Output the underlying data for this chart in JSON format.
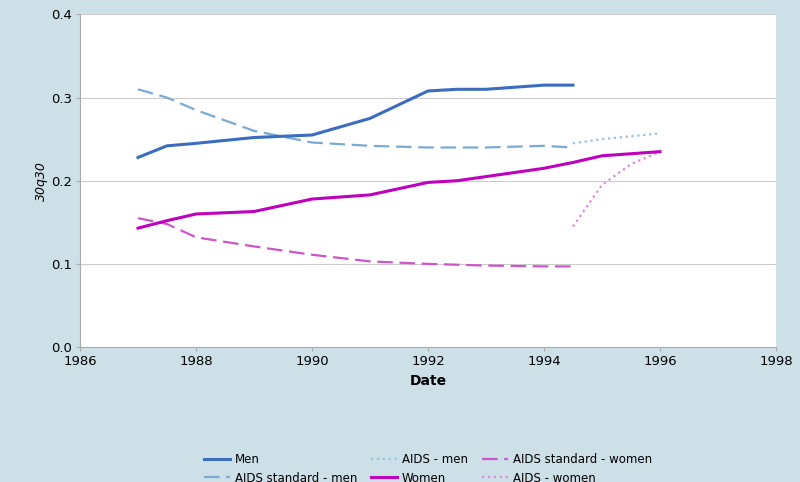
{
  "men_solid": {
    "x": [
      1987,
      1987.5,
      1988,
      1989,
      1990,
      1991,
      1992,
      1992.5,
      1993,
      1994,
      1994.5
    ],
    "y": [
      0.228,
      0.242,
      0.245,
      0.252,
      0.255,
      0.275,
      0.308,
      0.31,
      0.31,
      0.315,
      0.315
    ]
  },
  "aids_standard_men": {
    "x": [
      1987,
      1987.5,
      1988,
      1989,
      1990,
      1991,
      1992,
      1993,
      1994,
      1994.5
    ],
    "y": [
      0.31,
      0.3,
      0.285,
      0.26,
      0.246,
      0.242,
      0.24,
      0.24,
      0.242,
      0.24
    ]
  },
  "aids_men": {
    "x": [
      1994.5,
      1995,
      1996
    ],
    "y": [
      0.245,
      0.25,
      0.257
    ]
  },
  "women_solid": {
    "x": [
      1987,
      1987.5,
      1988,
      1989,
      1990,
      1991,
      1992,
      1992.5,
      1993,
      1994,
      1994.5,
      1995,
      1996
    ],
    "y": [
      0.143,
      0.152,
      0.16,
      0.163,
      0.178,
      0.183,
      0.198,
      0.2,
      0.205,
      0.215,
      0.222,
      0.23,
      0.235
    ]
  },
  "aids_standard_women": {
    "x": [
      1987,
      1987.5,
      1988,
      1989,
      1990,
      1991,
      1992,
      1993,
      1994,
      1994.5
    ],
    "y": [
      0.155,
      0.148,
      0.132,
      0.121,
      0.111,
      0.103,
      0.1,
      0.098,
      0.097,
      0.097
    ]
  },
  "aids_women": {
    "x": [
      1994.5,
      1995,
      1995.5,
      1996
    ],
    "y": [
      0.145,
      0.195,
      0.22,
      0.235
    ]
  },
  "color_blue": "#3a6dbf",
  "color_blue_dashed": "#7baad4",
  "color_blue_dotted": "#99c0e0",
  "color_magenta": "#bf00bf",
  "color_magenta_dashed": "#cc55cc",
  "color_magenta_dotted": "#dd88dd",
  "xlim": [
    1986,
    1998
  ],
  "ylim": [
    0.0,
    0.4
  ],
  "xticks": [
    1986,
    1988,
    1990,
    1992,
    1994,
    1996,
    1998
  ],
  "yticks": [
    0.0,
    0.1,
    0.2,
    0.3,
    0.4
  ],
  "xlabel": "Date",
  "ylabel": "30q30",
  "background_color": "#cde0e8",
  "plot_background": "#ffffff",
  "legend_labels": [
    "Men",
    "AIDS standard - men",
    "AIDS - men",
    "Women",
    "AIDS standard - women",
    "AIDS - women"
  ]
}
